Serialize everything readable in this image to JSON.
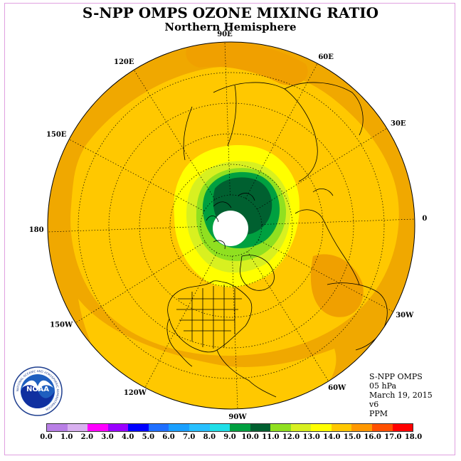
{
  "title": "S-NPP OMPS OZONE MIXING RATIO",
  "subtitle": "Northern Hemisphere",
  "meridian_labels": [
    {
      "text": "90E",
      "lon": 90
    },
    {
      "text": "60E",
      "lon": 60
    },
    {
      "text": "30E",
      "lon": 30
    },
    {
      "text": "0",
      "lon": 0
    },
    {
      "text": "30W",
      "lon": -30
    },
    {
      "text": "60W",
      "lon": -60
    },
    {
      "text": "90W",
      "lon": -90
    },
    {
      "text": "120W",
      "lon": -120
    },
    {
      "text": "150W",
      "lon": -150
    },
    {
      "text": "180",
      "lon": 180
    },
    {
      "text": "150E",
      "lon": 150
    },
    {
      "text": "120E",
      "lon": 120
    }
  ],
  "info": {
    "instrument": "S-NPP OMPS",
    "level": "05 hPa",
    "date": "March 19, 2015",
    "version": "v6",
    "units": "PPM"
  },
  "colorbar": {
    "colors": [
      "#b97fe6",
      "#d9b0f0",
      "#ff00ff",
      "#9a00ff",
      "#0000ff",
      "#1f6fff",
      "#1aa0ff",
      "#27c0ff",
      "#1fdfe8",
      "#00a040",
      "#006030",
      "#90e020",
      "#d8f020",
      "#ffff00",
      "#ffc800",
      "#ff9800",
      "#ff5000",
      "#ff0000",
      "#8b5a3c"
    ],
    "ticks": [
      "0.0",
      "1.0",
      "2.0",
      "3.0",
      "4.0",
      "5.0",
      "6.0",
      "7.0",
      "8.0",
      "9.0",
      "10.0",
      "11.0",
      "12.0",
      "13.0",
      "14.0",
      "15.0",
      "16.0",
      "17.0",
      "18.0"
    ]
  },
  "map_colors": {
    "ocean_base": "#f0a800",
    "band_14": "#ffc800",
    "band_15": "#f0a000",
    "band_12": "#ffff00",
    "band_11": "#d8f020",
    "band_10": "#90e020",
    "band_9": "#00a040",
    "band_8": "#006030",
    "no_data": "#ffffff"
  },
  "logo": {
    "text": "NOAA",
    "ring_text": "NATIONAL OCEANIC AND ATMOSPHERIC ADMINISTRATION"
  }
}
